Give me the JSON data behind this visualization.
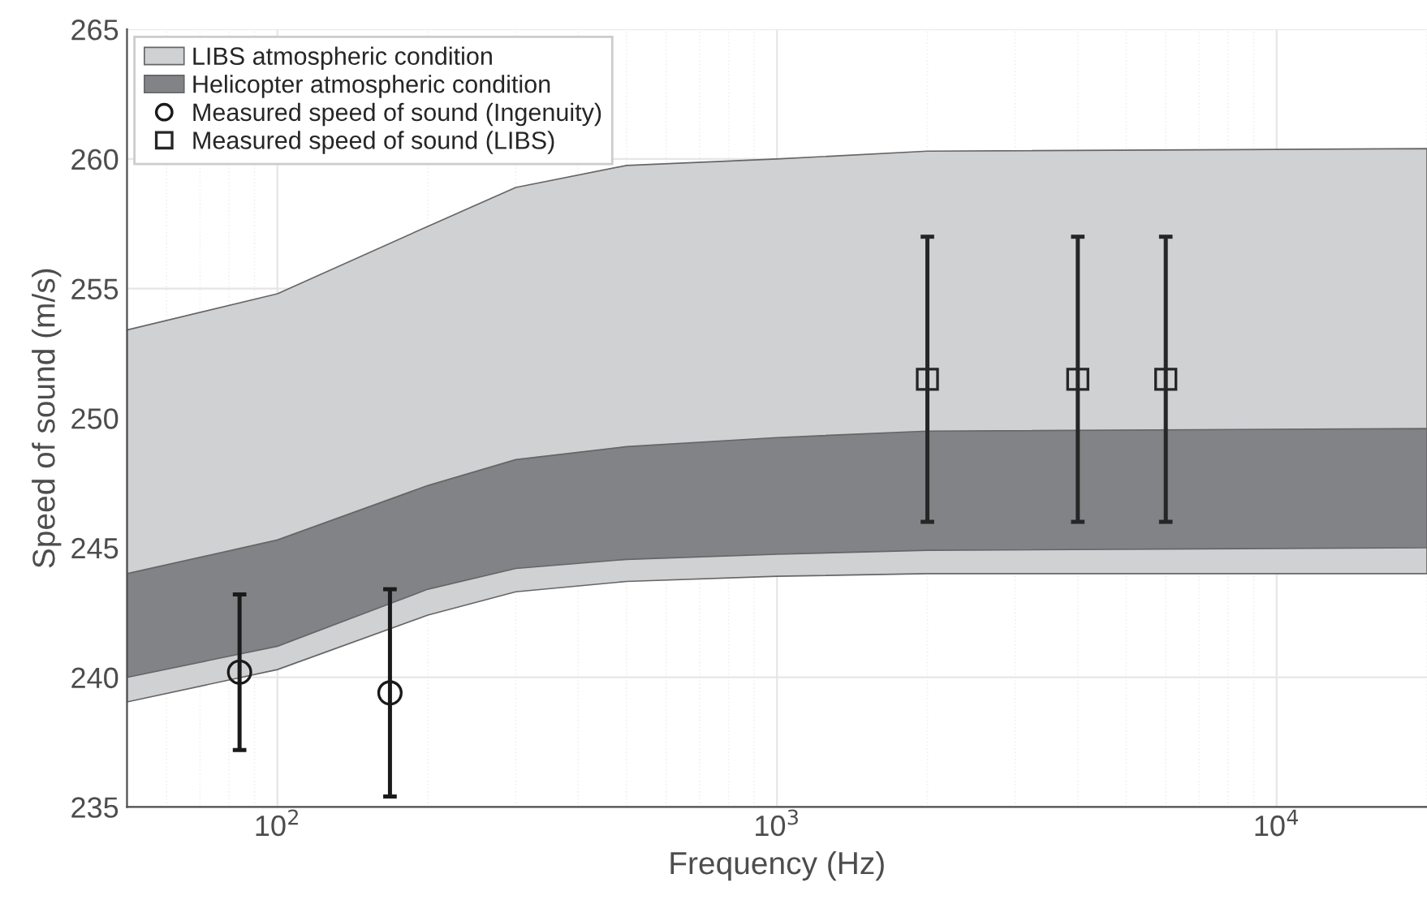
{
  "chart_data": {
    "type": "line",
    "xlabel": "Frequency (Hz)",
    "ylabel": "Speed of sound (m/s)",
    "log": "x",
    "xlim": [
      50,
      20000
    ],
    "xticks": [
      {
        "value": 100,
        "label": "10$^{2}$"
      },
      {
        "value": 1000,
        "label": "10$^{3}$"
      },
      {
        "value": 10000,
        "label": "10$^{4}$"
      }
    ],
    "ylim": [
      235,
      265
    ],
    "yticks": [
      235,
      240,
      245,
      250,
      255,
      260,
      265
    ],
    "grid": true,
    "legend": "top left",
    "series": [
      {
        "name": "LIBS atmospheric condition",
        "color": "#d0d1d3",
        "x": [
          50,
          100,
          200,
          300,
          500,
          1000,
          2000,
          20000
        ],
        "values": [
          null,
          null,
          null,
          null,
          null,
          null,
          null,
          null
        ],
        "upper": [
          253.4,
          254.8,
          257.4,
          258.9,
          259.75,
          260.0,
          260.3,
          260.4
        ],
        "lower": [
          239.05,
          240.3,
          242.4,
          243.3,
          243.7,
          243.9,
          244.0,
          244.0
        ]
      },
      {
        "name": "Helicopter atmospheric condition",
        "color": "#828387",
        "x": [
          50,
          100,
          200,
          300,
          500,
          1000,
          2000,
          20000
        ],
        "values": [
          null,
          null,
          null,
          null,
          null,
          null,
          null,
          null
        ],
        "upper": [
          244.0,
          245.3,
          247.4,
          248.4,
          248.9,
          249.25,
          249.5,
          249.6
        ],
        "lower": [
          240.0,
          241.2,
          243.4,
          244.2,
          244.55,
          244.75,
          244.9,
          245.0
        ]
      },
      {
        "name": "Measured speed of sound (Ingenuity)",
        "type": "scatter",
        "marker": "circle",
        "color": "#1a1a1a",
        "x": [
          84,
          168
        ],
        "values": [
          240.2,
          239.4
        ],
        "errors": [
          [
            237.2,
            243.2
          ],
          [
            235.4,
            243.4
          ]
        ]
      },
      {
        "name": "Measured speed of sound (LIBS)",
        "type": "scatter",
        "marker": "square",
        "color": "#262626",
        "x": [
          2000,
          4000,
          6000
        ],
        "values": [
          251.5,
          251.5,
          251.5
        ],
        "errors": [
          [
            246,
            257
          ],
          [
            246,
            257
          ],
          [
            246,
            257
          ]
        ]
      }
    ]
  }
}
